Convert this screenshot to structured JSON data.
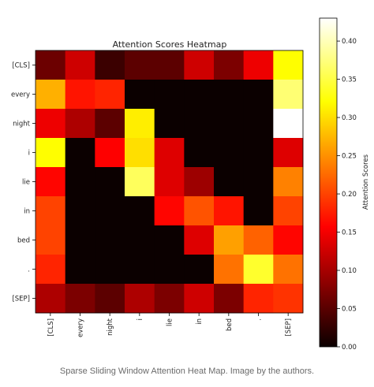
{
  "chart_data": {
    "type": "heatmap",
    "title": "Attention Scores Heatmap",
    "x_tokens": [
      "[CLS]",
      "every",
      "night",
      "i",
      "lie",
      "in",
      "bed",
      ".",
      "[SEP]"
    ],
    "y_tokens": [
      "[CLS]",
      "every",
      "night",
      "i",
      "lie",
      "in",
      "bed",
      ".",
      "[SEP]"
    ],
    "values": [
      [
        0.06,
        0.12,
        0.03,
        0.05,
        0.05,
        0.12,
        0.07,
        0.14,
        0.32
      ],
      [
        0.27,
        0.17,
        0.18,
        0.0,
        0.0,
        0.0,
        0.0,
        0.0,
        0.37
      ],
      [
        0.14,
        0.1,
        0.05,
        0.31,
        0.0,
        0.0,
        0.0,
        0.0,
        0.43
      ],
      [
        0.32,
        0.0,
        0.15,
        0.3,
        0.13,
        0.0,
        0.0,
        0.0,
        0.13
      ],
      [
        0.16,
        0.0,
        0.0,
        0.36,
        0.13,
        0.09,
        0.0,
        0.0,
        0.24
      ],
      [
        0.2,
        0.0,
        0.0,
        0.0,
        0.16,
        0.21,
        0.17,
        0.0,
        0.2
      ],
      [
        0.2,
        0.0,
        0.0,
        0.0,
        0.0,
        0.13,
        0.26,
        0.22,
        0.16
      ],
      [
        0.18,
        0.0,
        0.0,
        0.0,
        0.0,
        0.0,
        0.23,
        0.34,
        0.23
      ],
      [
        0.1,
        0.07,
        0.05,
        0.1,
        0.07,
        0.12,
        0.07,
        0.18,
        0.19
      ]
    ],
    "colorbar": {
      "label": "Attention Scores",
      "min": 0,
      "max": 0.43,
      "ticks": [
        "0.00",
        "0.05",
        "0.10",
        "0.15",
        "0.20",
        "0.25",
        "0.30",
        "0.35",
        "0.40"
      ],
      "colormap": "hot"
    },
    "grid": false,
    "legend": "colorbar-right"
  },
  "caption": "Sparse Sliding Window Attention Heat Map. Image by the authors."
}
